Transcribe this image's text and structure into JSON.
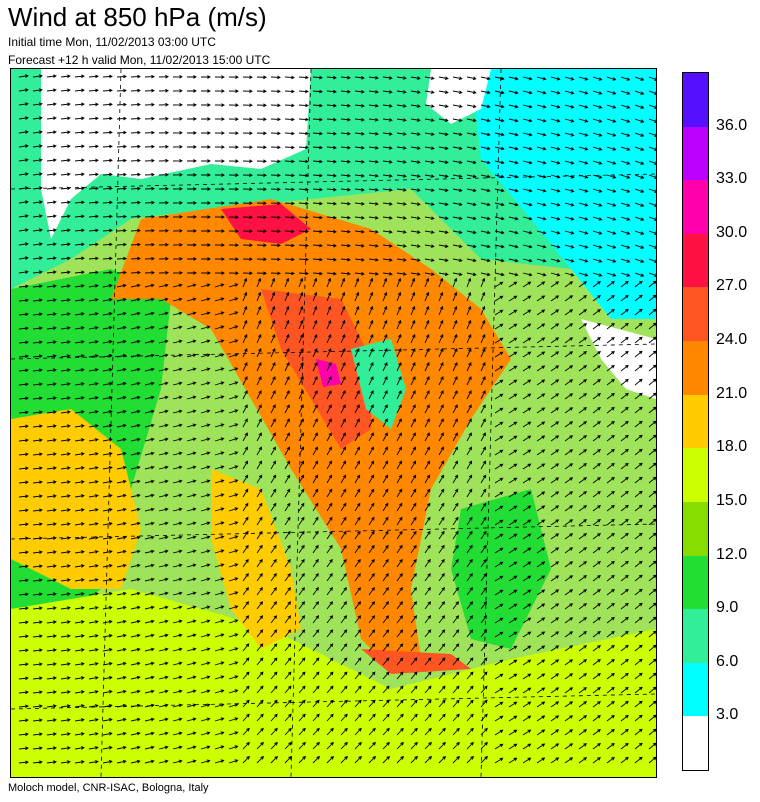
{
  "title": "Wind at 850 hPa (m/s)",
  "initial_time": "Initial time  Mon, 11/02/2013 03:00 UTC",
  "forecast": "Forecast +12 h valid  Mon, 11/02/2013 15:00 UTC",
  "footer": "Moloch model, CNR-ISAC, Bologna, Italy",
  "legend": {
    "unit": "m/s",
    "bands": [
      {
        "min": 0,
        "max": 3,
        "color": "#ffffff"
      },
      {
        "min": 3,
        "max": 6,
        "color": "#00ffff"
      },
      {
        "min": 6,
        "max": 9,
        "color": "#33ee99"
      },
      {
        "min": 9,
        "max": 12,
        "color": "#22dd33"
      },
      {
        "min": 12,
        "max": 15,
        "color": "#88dd00"
      },
      {
        "min": 15,
        "max": 18,
        "color": "#ccff00"
      },
      {
        "min": 18,
        "max": 21,
        "color": "#ffcc00"
      },
      {
        "min": 21,
        "max": 24,
        "color": "#ff8800"
      },
      {
        "min": 24,
        "max": 27,
        "color": "#ff5522"
      },
      {
        "min": 27,
        "max": 30,
        "color": "#ff1144"
      },
      {
        "min": 30,
        "max": 33,
        "color": "#ff00aa"
      },
      {
        "min": 33,
        "max": 36,
        "color": "#bb00ff"
      },
      {
        "min": 36,
        "max": 39,
        "color": "#5511ff"
      }
    ],
    "labels": [
      "3.0",
      "6.0",
      "9.0",
      "12.0",
      "15.0",
      "18.0",
      "21.0",
      "24.0",
      "27.0",
      "30.0",
      "33.0",
      "36.0"
    ]
  },
  "map": {
    "background_color": "#9fe35a",
    "arrow_color": "#000000",
    "graticule": "dashed"
  }
}
